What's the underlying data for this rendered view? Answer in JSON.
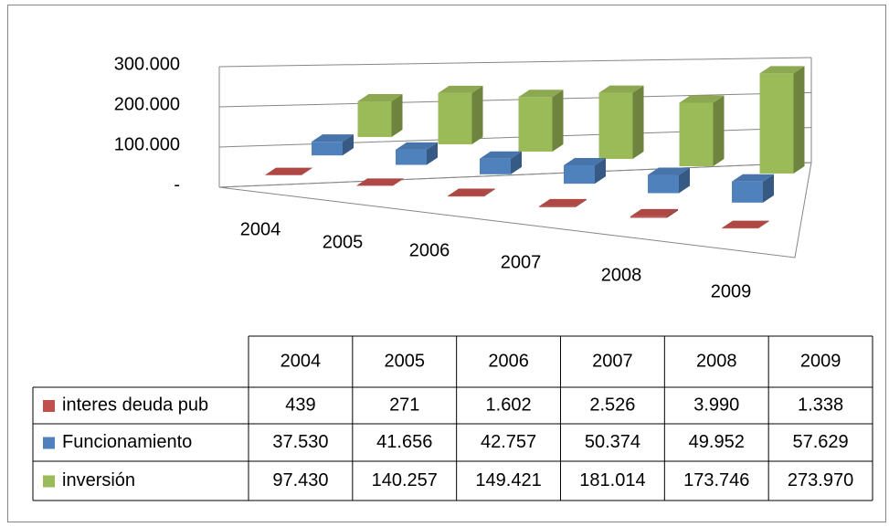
{
  "chart_data": {
    "type": "bar3d",
    "categories": [
      "2004",
      "2005",
      "2006",
      "2007",
      "2008",
      "2009"
    ],
    "series": [
      {
        "name": "interes deuda pub",
        "color": "#c0504d",
        "values": [
          439,
          271,
          1602,
          2526,
          3990,
          1338
        ],
        "value_labels": [
          "439",
          "271",
          "1.602",
          "2.526",
          "3.990",
          "1.338"
        ]
      },
      {
        "name": "Funcionamiento",
        "color": "#4f81bd",
        "values": [
          37530,
          41656,
          42757,
          50374,
          49952,
          57629
        ],
        "value_labels": [
          "37.530",
          "41.656",
          "42.757",
          "50.374",
          "49.952",
          "57.629"
        ]
      },
      {
        "name": "inversión",
        "color": "#9bbb59",
        "values": [
          97430,
          140257,
          149421,
          181014,
          173746,
          273970
        ],
        "value_labels": [
          "97.430",
          "140.257",
          "149.421",
          "181.014",
          "173.746",
          "273.970"
        ]
      }
    ],
    "ylim": [
      0,
      300000
    ],
    "yticks": [
      {
        "value": 0,
        "label": "-"
      },
      {
        "value": 100000,
        "label": "100.000"
      },
      {
        "value": 200000,
        "label": "200.000"
      },
      {
        "value": 300000,
        "label": "300.000"
      }
    ],
    "grid": true
  }
}
